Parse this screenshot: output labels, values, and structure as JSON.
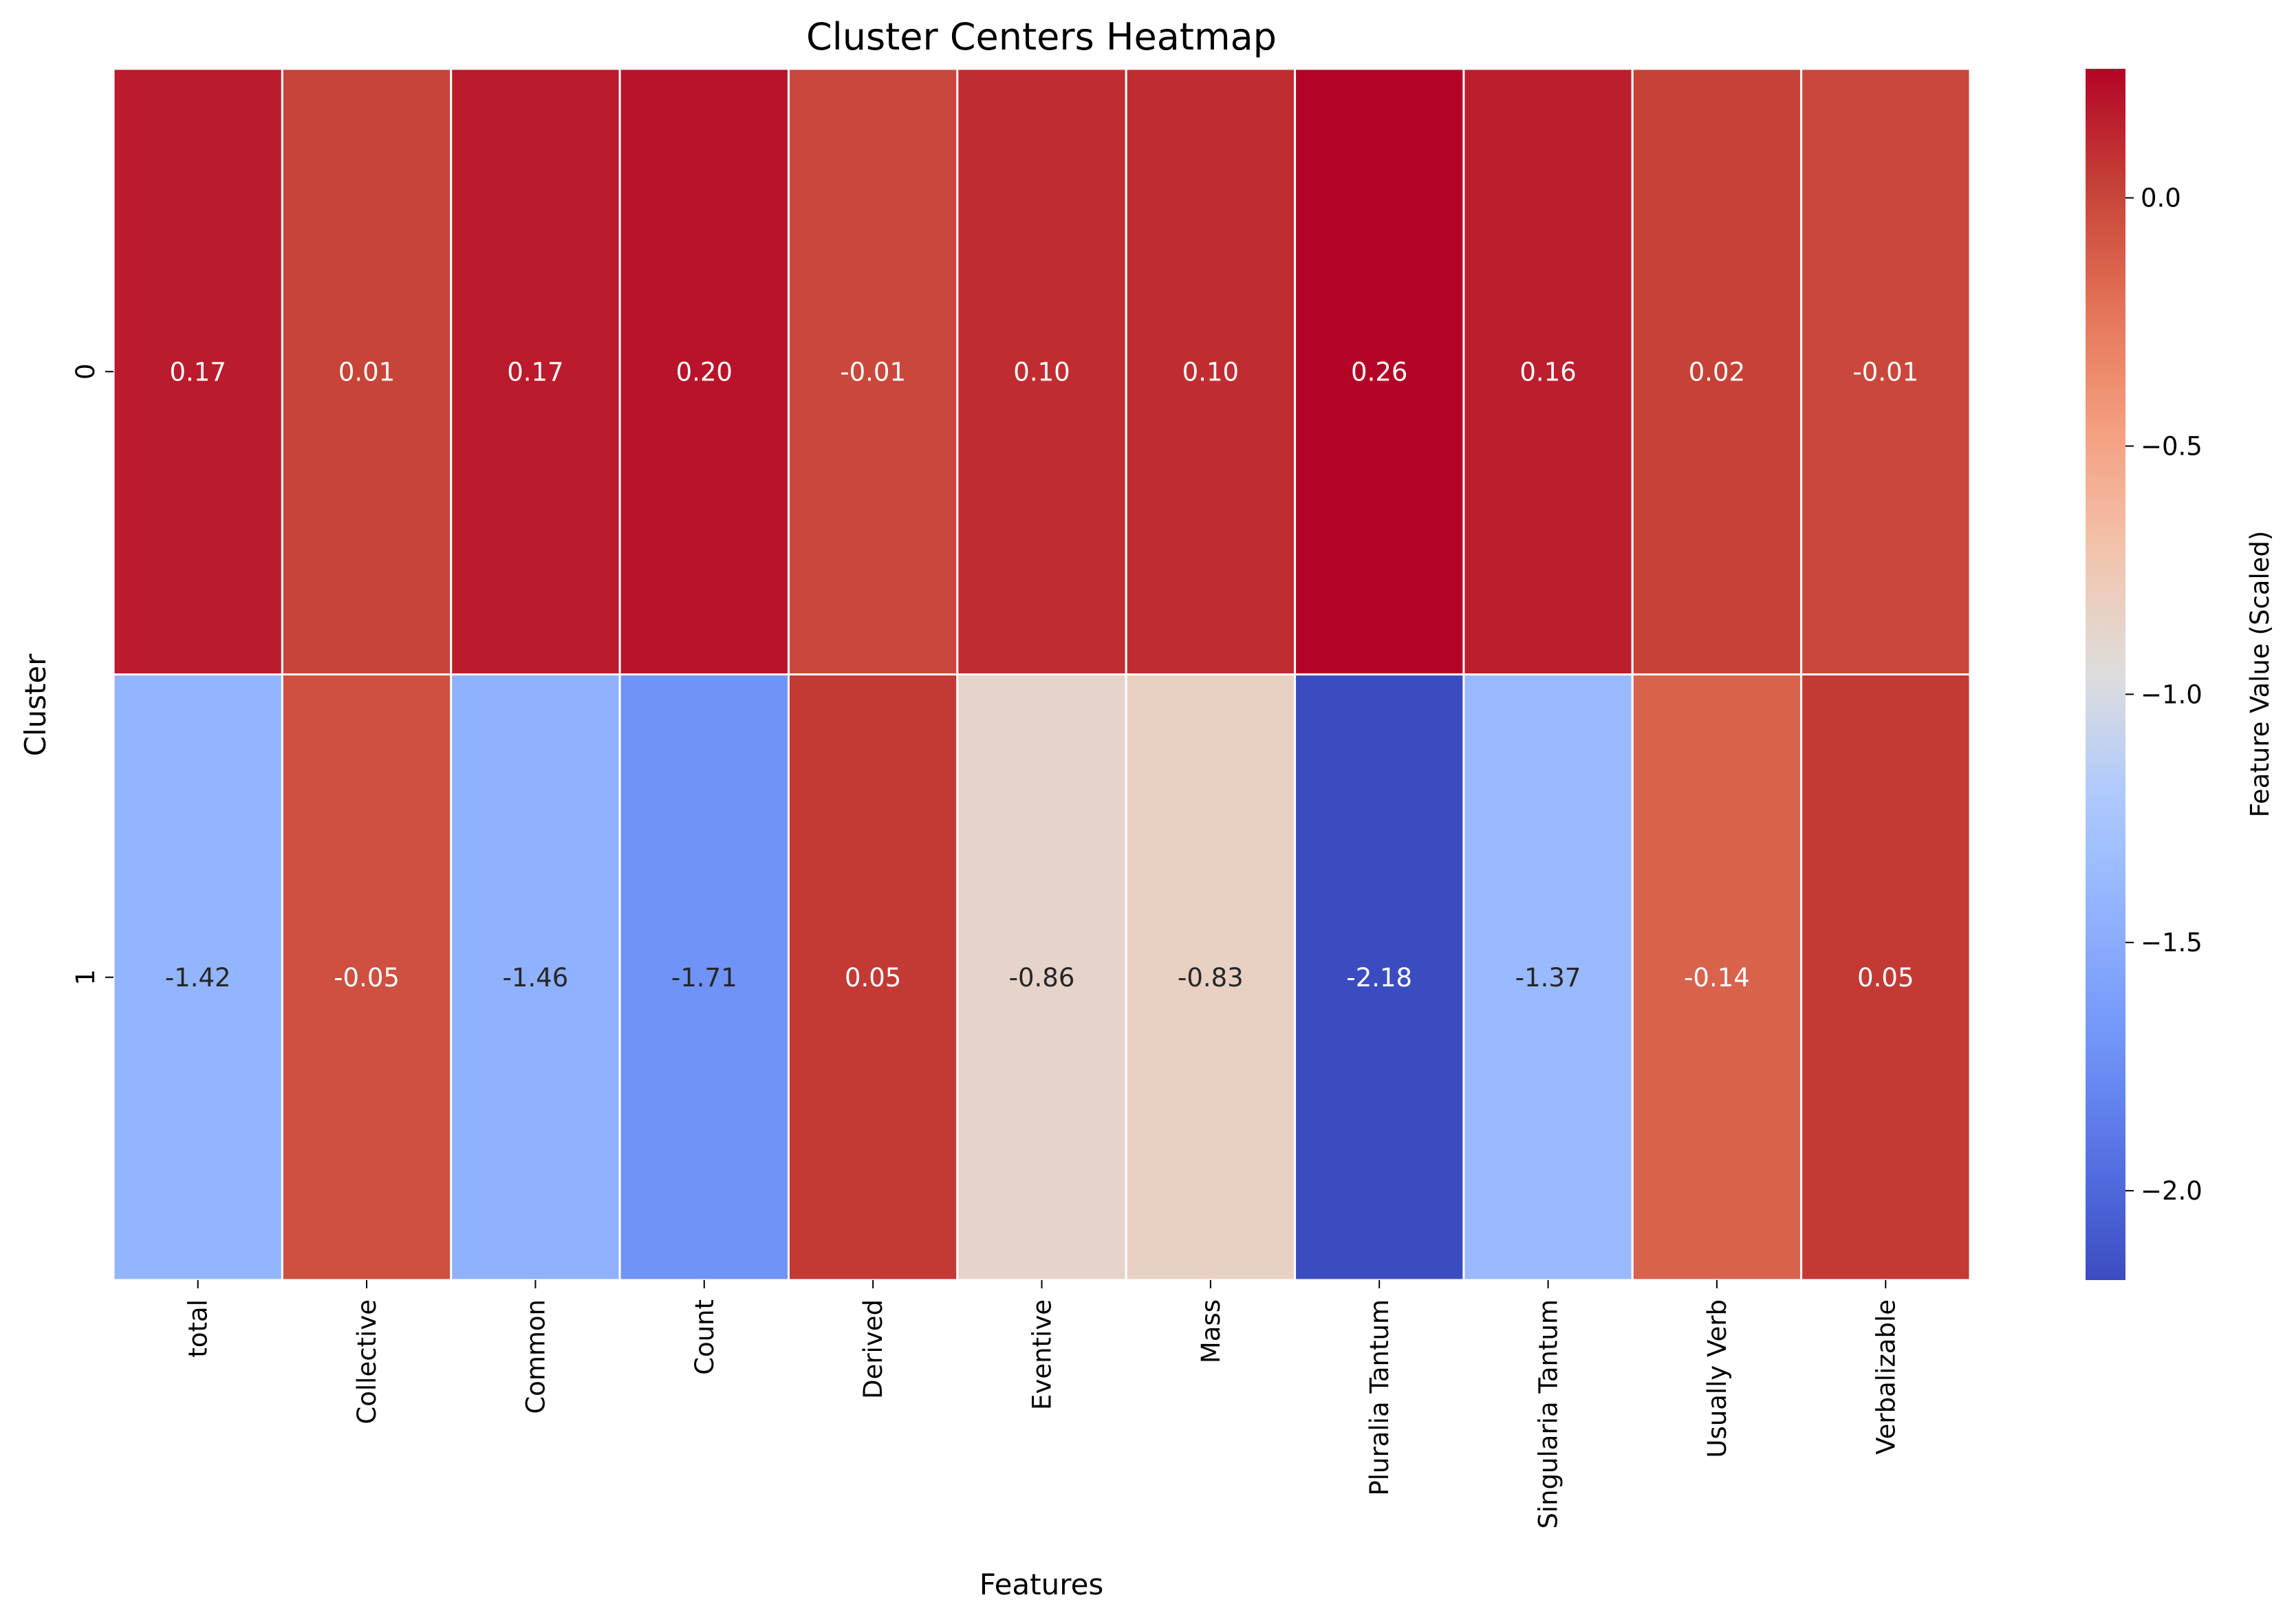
{
  "chart_data": {
    "type": "heatmap",
    "title": "Cluster Centers Heatmap",
    "xlabel": "Features",
    "ylabel": "Cluster",
    "x_categories": [
      "total",
      "Collective",
      "Common",
      "Count",
      "Derived",
      "Eventive",
      "Mass",
      "Pluralia Tantum",
      "Singularia Tantum",
      "Usually Verb",
      "Verbalizable"
    ],
    "y_categories": [
      "0",
      "1"
    ],
    "values": [
      [
        0.17,
        0.01,
        0.17,
        0.2,
        -0.01,
        0.1,
        0.1,
        0.26,
        0.16,
        0.02,
        -0.01
      ],
      [
        -1.42,
        -0.05,
        -1.46,
        -1.71,
        0.05,
        -0.86,
        -0.83,
        -2.18,
        -1.37,
        -0.14,
        0.05
      ]
    ],
    "value_labels": [
      [
        "0.17",
        "0.01",
        "0.17",
        "0.20",
        "-0.01",
        "0.10",
        "0.10",
        "0.26",
        "0.16",
        "0.02",
        "-0.01"
      ],
      [
        "-1.42",
        "-0.05",
        "-1.46",
        "-1.71",
        "0.05",
        "-0.86",
        "-0.83",
        "-2.18",
        "-1.37",
        "-0.14",
        "0.05"
      ]
    ],
    "colormap": "coolwarm",
    "vmin": -2.18,
    "vmax": 0.26,
    "colorbar": {
      "label": "Feature Value (Scaled)",
      "ticks": [
        0.0,
        -0.5,
        -1.0,
        -1.5,
        -2.0
      ],
      "tick_labels": [
        "0.0",
        "−0.5",
        "−1.0",
        "−1.5",
        "−2.0"
      ]
    },
    "grid": false,
    "legend": "colorbar-right"
  }
}
